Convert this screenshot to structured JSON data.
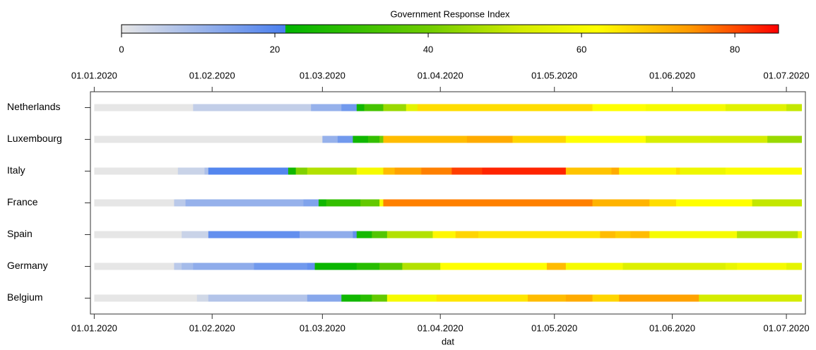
{
  "chart_data": {
    "type": "timeline",
    "colorbar_title": "Government Response Index",
    "clim": [
      0,
      85.7
    ],
    "cticks": [
      0,
      20,
      40,
      60,
      80
    ],
    "colormap": [
      {
        "value": 0,
        "color": "#e6e6e6"
      },
      {
        "value": 21.4,
        "color": "#4a7fef"
      },
      {
        "value": 21.4,
        "color": "#00b400"
      },
      {
        "value": 40,
        "color": "#6fcc00"
      },
      {
        "value": 52,
        "color": "#d4ec00"
      },
      {
        "value": 62,
        "color": "#ffff00"
      },
      {
        "value": 74,
        "color": "#ff9a00"
      },
      {
        "value": 85.7,
        "color": "#ff0000"
      }
    ],
    "xlabel": "dat",
    "xlim": [
      "2019-12-31",
      "2020-07-06"
    ],
    "xticks": [
      {
        "value": "2020-01-01",
        "label": "01.01.2020"
      },
      {
        "value": "2020-02-01",
        "label": "01.02.2020"
      },
      {
        "value": "2020-03-01",
        "label": "01.03.2020"
      },
      {
        "value": "2020-04-01",
        "label": "01.04.2020"
      },
      {
        "value": "2020-05-01",
        "label": "01.05.2020"
      },
      {
        "value": "2020-06-01",
        "label": "01.06.2020"
      },
      {
        "value": "2020-07-01",
        "label": "01.07.2020"
      }
    ],
    "series": [
      {
        "name": "Netherlands",
        "edges": [
          "2020-01-01",
          "2020-01-27",
          "2020-02-27",
          "2020-03-06",
          "2020-03-10",
          "2020-03-12",
          "2020-03-17",
          "2020-03-23",
          "2020-03-26",
          "2020-05-11",
          "2020-05-25",
          "2020-06-15",
          "2020-07-01",
          "2020-07-05"
        ],
        "values": [
          0,
          5,
          11,
          16,
          24,
          33,
          45,
          56,
          66,
          62,
          60,
          55,
          50
        ]
      },
      {
        "name": "Luxembourg",
        "edges": [
          "2020-01-01",
          "2020-03-01",
          "2020-03-05",
          "2020-03-09",
          "2020-03-13",
          "2020-03-16",
          "2020-03-17",
          "2020-04-08",
          "2020-04-20",
          "2020-05-04",
          "2020-05-25",
          "2020-06-11",
          "2020-06-26",
          "2020-07-05"
        ],
        "values": [
          0,
          11,
          16,
          24,
          30,
          40,
          70,
          72,
          67,
          62,
          53,
          52,
          45
        ]
      },
      {
        "name": "Italy",
        "edges": [
          "2020-01-01",
          "2020-01-23",
          "2020-01-30",
          "2020-01-31",
          "2020-02-21",
          "2020-02-23",
          "2020-02-26",
          "2020-03-10",
          "2020-03-17",
          "2020-03-20",
          "2020-03-27",
          "2020-04-04",
          "2020-04-12",
          "2020-05-04",
          "2020-05-16",
          "2020-05-18",
          "2020-06-02",
          "2020-06-03",
          "2020-06-15",
          "2020-07-05"
        ],
        "values": [
          0,
          4,
          8,
          20,
          24,
          42,
          48,
          60,
          70,
          73,
          76,
          81,
          83,
          69,
          72,
          63,
          66,
          58,
          61
        ]
      },
      {
        "name": "France",
        "edges": [
          "2020-01-01",
          "2020-01-22",
          "2020-01-25",
          "2020-02-25",
          "2020-02-29",
          "2020-03-02",
          "2020-03-11",
          "2020-03-16",
          "2020-03-17",
          "2020-05-11",
          "2020-05-26",
          "2020-06-02",
          "2020-06-22",
          "2020-07-05"
        ],
        "values": [
          0,
          6,
          11,
          14,
          24,
          30,
          38,
          60,
          76,
          71,
          66,
          62,
          50
        ]
      },
      {
        "name": "Spain",
        "edges": [
          "2020-01-01",
          "2020-01-24",
          "2020-01-31",
          "2020-02-24",
          "2020-03-09",
          "2020-03-10",
          "2020-03-14",
          "2020-03-18",
          "2020-03-30",
          "2020-04-05",
          "2020-04-11",
          "2020-05-13",
          "2020-05-17",
          "2020-05-21",
          "2020-05-26",
          "2020-06-18",
          "2020-07-04",
          "2020-07-05"
        ],
        "values": [
          0,
          4,
          18,
          12,
          18,
          25,
          35,
          48,
          63,
          67,
          65,
          70,
          68,
          70,
          60,
          48,
          58
        ]
      },
      {
        "name": "Germany",
        "edges": [
          "2020-01-01",
          "2020-01-22",
          "2020-01-24",
          "2020-01-27",
          "2020-02-12",
          "2020-02-26",
          "2020-02-28",
          "2020-03-10",
          "2020-03-16",
          "2020-03-22",
          "2020-04-01",
          "2020-04-29",
          "2020-05-04",
          "2020-05-19",
          "2020-06-15",
          "2020-06-18",
          "2020-07-01",
          "2020-07-05"
        ],
        "values": [
          0,
          6,
          9,
          12,
          16,
          18,
          23,
          28,
          36,
          48,
          62,
          70,
          60,
          54,
          57,
          60,
          56
        ]
      },
      {
        "name": "Belgium",
        "edges": [
          "2020-01-01",
          "2020-01-28",
          "2020-01-31",
          "2020-02-26",
          "2020-03-06",
          "2020-03-11",
          "2020-03-14",
          "2020-03-18",
          "2020-03-31",
          "2020-04-24",
          "2020-05-04",
          "2020-05-11",
          "2020-05-18",
          "2020-06-08",
          "2020-07-05"
        ],
        "values": [
          0,
          3,
          7,
          13,
          24,
          28,
          38,
          60,
          65,
          70,
          72,
          67,
          73,
          52
        ]
      }
    ]
  }
}
